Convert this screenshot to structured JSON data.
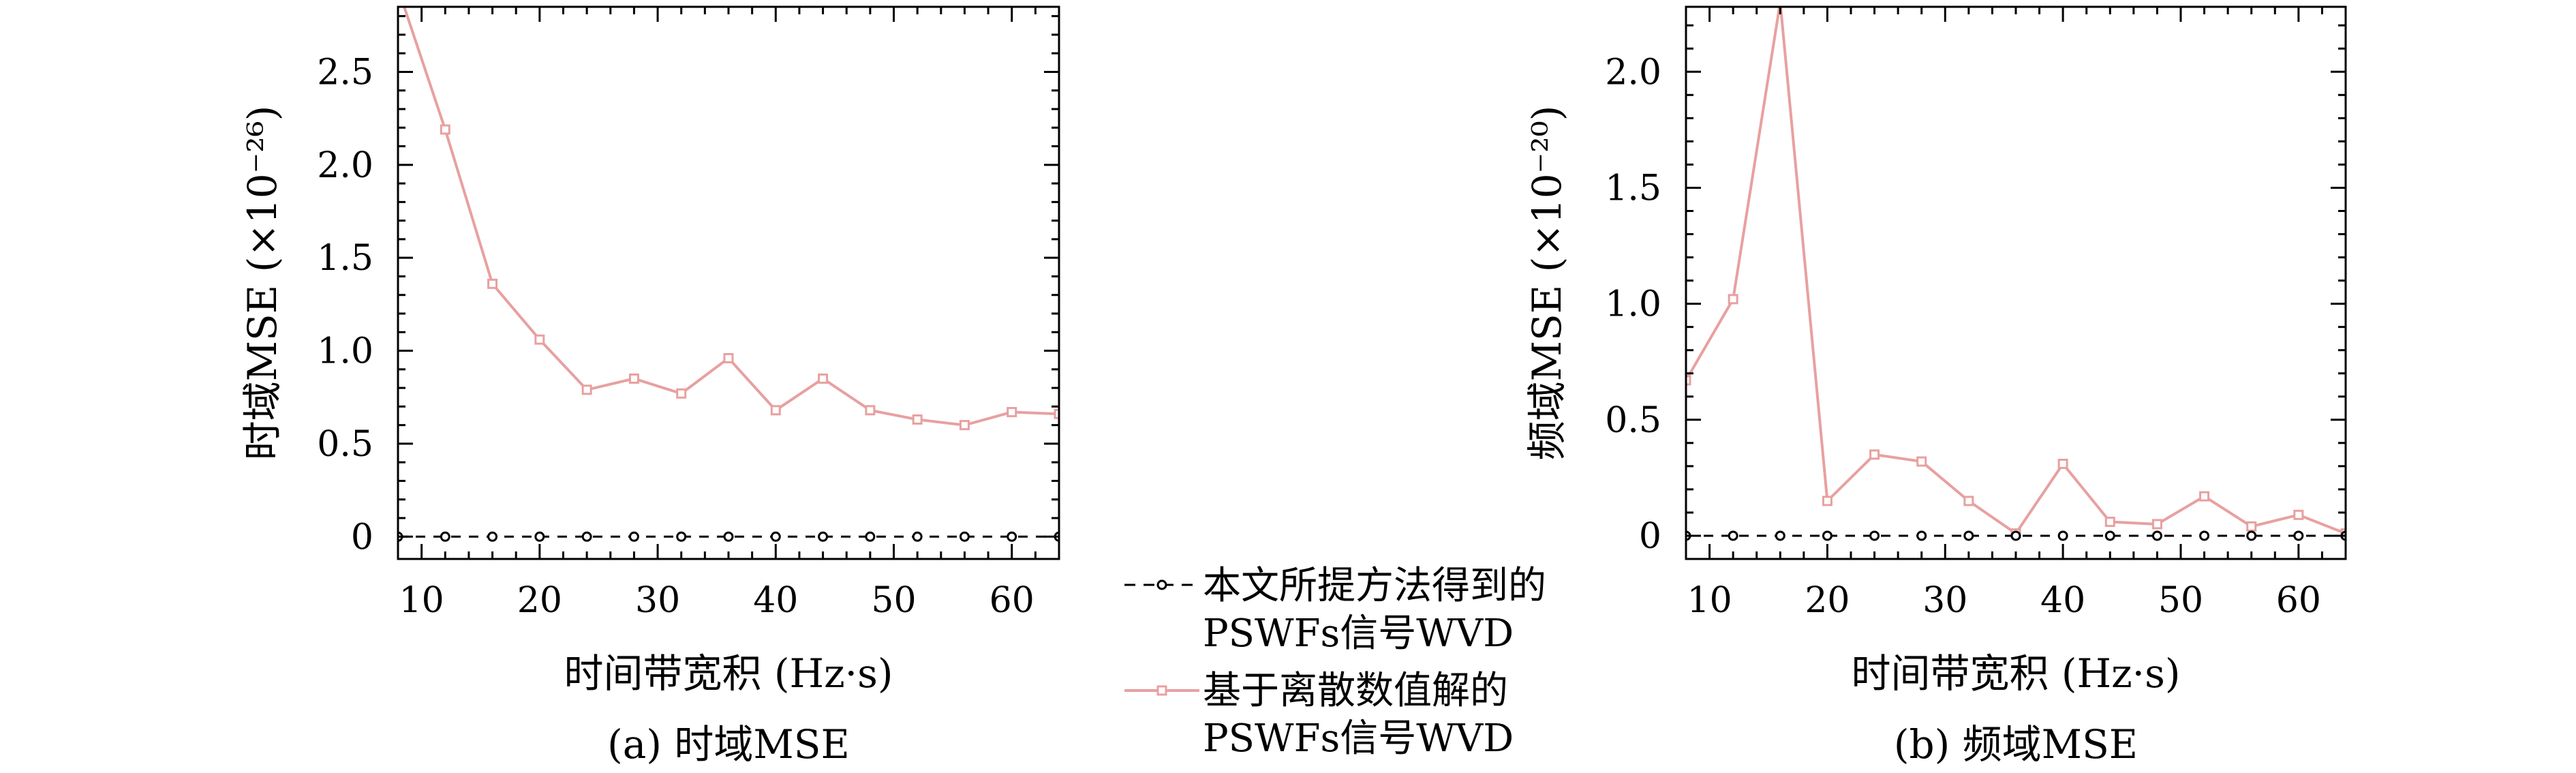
{
  "legend": {
    "series1_line1": "本文所提方法得到的",
    "series1_line2": "PSWFs信号WVD",
    "series2_line1": "基于离散数值解的",
    "series2_line2": "PSWFs信号WVD"
  },
  "colors": {
    "proposed": "#000000",
    "discrete": "#e8a0a0"
  },
  "chart_data": [
    {
      "type": "line",
      "caption": "(a) 时域MSE",
      "xlabel": "时间带宽积 (Hz·s)",
      "ylabel": "时域MSE (×10⁻²⁶)",
      "xlim": [
        8,
        64
      ],
      "ylim": [
        -0.12,
        2.85
      ],
      "xticks": [
        10,
        20,
        30,
        40,
        50,
        60
      ],
      "xtick_labels": [
        "10",
        "20",
        "30",
        "40",
        "50",
        "60"
      ],
      "yticks": [
        0,
        0.5,
        1.0,
        1.5,
        2.0,
        2.5
      ],
      "ytick_labels": [
        "0",
        "0.5",
        "1.0",
        "1.5",
        "2.0",
        "2.5"
      ],
      "series": [
        {
          "values": [
            [
              8,
              0
            ],
            [
              12,
              0
            ],
            [
              16,
              0
            ],
            [
              20,
              0
            ],
            [
              24,
              0
            ],
            [
              28,
              0
            ],
            [
              32,
              0
            ],
            [
              36,
              0
            ],
            [
              40,
              0
            ],
            [
              44,
              0
            ],
            [
              48,
              0
            ],
            [
              52,
              0
            ],
            [
              56,
              0
            ],
            [
              60,
              0
            ],
            [
              64,
              0
            ]
          ]
        },
        {
          "values": [
            [
              8,
              2.95
            ],
            [
              12,
              2.19
            ],
            [
              16,
              1.36
            ],
            [
              20,
              1.06
            ],
            [
              24,
              0.79
            ],
            [
              28,
              0.85
            ],
            [
              32,
              0.77
            ],
            [
              36,
              0.96
            ],
            [
              40,
              0.68
            ],
            [
              44,
              0.85
            ],
            [
              48,
              0.68
            ],
            [
              52,
              0.63
            ],
            [
              56,
              0.6
            ],
            [
              60,
              0.67
            ],
            [
              64,
              0.66
            ]
          ]
        }
      ]
    },
    {
      "type": "line",
      "caption": "(b) 频域MSE",
      "xlabel": "时间带宽积 (Hz·s)",
      "ylabel": "频域MSE (×10⁻²⁰)",
      "xlim": [
        8,
        64
      ],
      "ylim": [
        -0.1,
        2.28
      ],
      "xticks": [
        10,
        20,
        30,
        40,
        50,
        60
      ],
      "xtick_labels": [
        "10",
        "20",
        "30",
        "40",
        "50",
        "60"
      ],
      "yticks": [
        0,
        0.5,
        1.0,
        1.5,
        2.0
      ],
      "ytick_labels": [
        "0",
        "0.5",
        "1.0",
        "1.5",
        "2.0"
      ],
      "series": [
        {
          "values": [
            [
              8,
              0
            ],
            [
              12,
              0
            ],
            [
              16,
              0
            ],
            [
              20,
              0
            ],
            [
              24,
              0
            ],
            [
              28,
              0
            ],
            [
              32,
              0
            ],
            [
              36,
              0
            ],
            [
              40,
              0
            ],
            [
              44,
              0
            ],
            [
              48,
              0
            ],
            [
              52,
              0
            ],
            [
              56,
              0
            ],
            [
              60,
              0
            ],
            [
              64,
              0
            ]
          ]
        },
        {
          "values": [
            [
              8,
              0.67
            ],
            [
              12,
              1.02
            ],
            [
              16,
              2.3
            ],
            [
              20,
              0.15
            ],
            [
              24,
              0.35
            ],
            [
              28,
              0.32
            ],
            [
              32,
              0.15
            ],
            [
              36,
              0.01
            ],
            [
              40,
              0.31
            ],
            [
              44,
              0.06
            ],
            [
              48,
              0.05
            ],
            [
              52,
              0.17
            ],
            [
              56,
              0.04
            ],
            [
              60,
              0.09
            ],
            [
              64,
              0.01
            ]
          ]
        }
      ]
    }
  ]
}
